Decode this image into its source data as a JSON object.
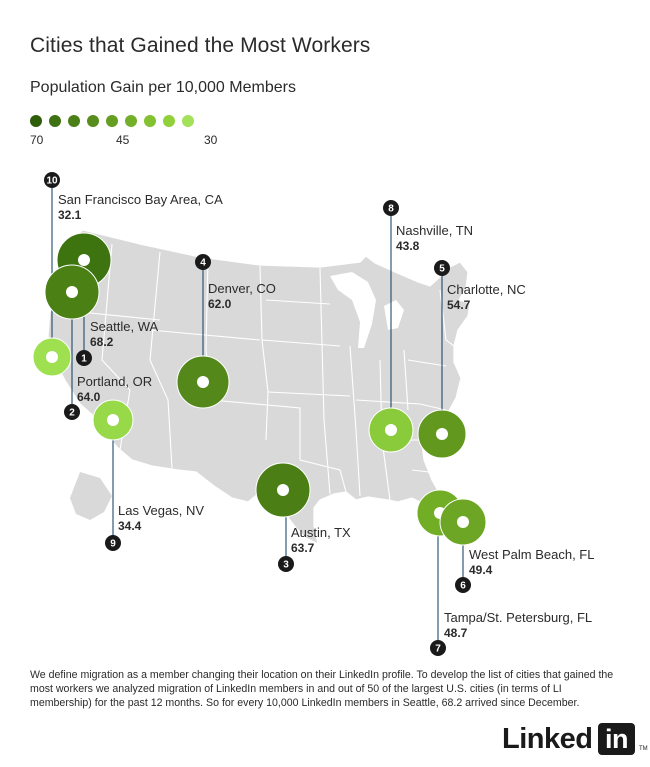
{
  "header": {
    "title": "Cities that Gained the Most Workers",
    "subtitle": "Population Gain per 10,000 Members"
  },
  "legend": {
    "high_label": "70",
    "mid_label": "45",
    "low_label": "30",
    "colors": [
      "#2f5e0a",
      "#3d7111",
      "#4b7f17",
      "#578d1c",
      "#659e22",
      "#73af29",
      "#82c130",
      "#90d039",
      "#a3e15a"
    ]
  },
  "cities": [
    {
      "rank": "1",
      "name": "Seattle, WA",
      "value": "68.2",
      "color": "#3e7410"
    },
    {
      "rank": "2",
      "name": "Portland, OR",
      "value": "64.0",
      "color": "#4a8014"
    },
    {
      "rank": "3",
      "name": "Austin, TX",
      "value": "63.7",
      "color": "#4b7f16"
    },
    {
      "rank": "4",
      "name": "Denver, CO",
      "value": "62.0",
      "color": "#54881a"
    },
    {
      "rank": "5",
      "name": "Charlotte, NC",
      "value": "54.7",
      "color": "#62981e"
    },
    {
      "rank": "6",
      "name": "West Palm Beach, FL",
      "value": "49.4",
      "color": "#6ca624"
    },
    {
      "rank": "7",
      "name": "Tampa/St. Petersburg, FL",
      "value": "48.7",
      "color": "#71ae26"
    },
    {
      "rank": "8",
      "name": "Nashville, TN",
      "value": "43.8",
      "color": "#8acb3c"
    },
    {
      "rank": "9",
      "name": "Las Vegas, NV",
      "value": "34.4",
      "color": "#98d94a"
    },
    {
      "rank": "10",
      "name": "San Francisco Bay Area, CA",
      "value": "32.1",
      "color": "#9fe050"
    }
  ],
  "footnote": "We define migration as a member changing their location on their LinkedIn profile. To develop the list of cities that gained the most workers we analyzed migration of LinkedIn members in and out of 50 of the largest U.S. cities (in terms of LI membership) for the past 12 months. So for every 10,000 LinkedIn members in Seattle, 68.2 arrived since December.",
  "logo": {
    "word": "Linked",
    "box": "in",
    "tm": "TM"
  }
}
